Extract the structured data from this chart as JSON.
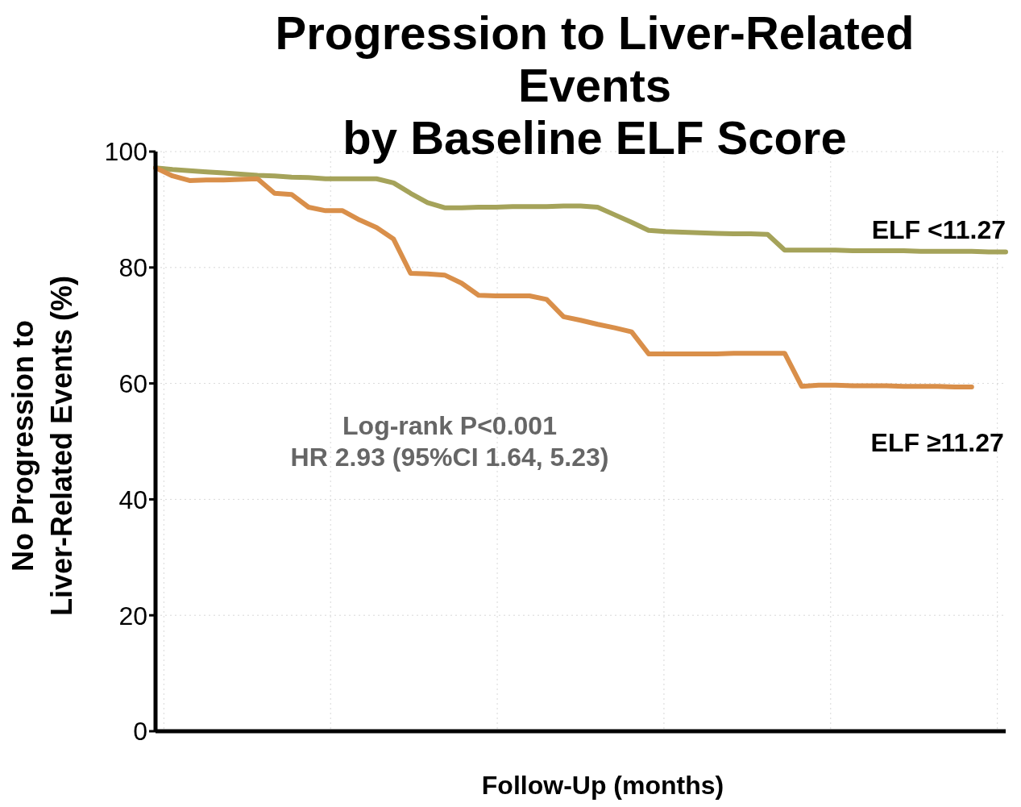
{
  "chart_data": {
    "type": "line",
    "title": "Progression to Liver-Related Events\nby Baseline ELF Score",
    "xlabel": "Follow-Up (months)",
    "ylabel": "No Progression to\nLiver-Related Events (%)",
    "categories": [
      null,
      null,
      null,
      null,
      null,
      null,
      null,
      null,
      null,
      null,
      null,
      null,
      null,
      null,
      null,
      null,
      null,
      null,
      null,
      null,
      null,
      null,
      null,
      null,
      null,
      null,
      null,
      null,
      null,
      null,
      null,
      null,
      null,
      null,
      null,
      null,
      null,
      null,
      null,
      null,
      null,
      null,
      null,
      null,
      null,
      null,
      null,
      null,
      null,
      null,
      null
    ],
    "series": [
      {
        "name": "ELF <11.27",
        "color": "#a5a35a",
        "values": [
          97.2,
          96.9,
          96.7,
          96.5,
          96.3,
          96.1,
          95.9,
          95.8,
          95.6,
          95.5,
          95.3,
          95.3,
          95.3,
          95.3,
          94.6,
          92.8,
          91.2,
          90.3,
          90.3,
          90.4,
          90.4,
          90.5,
          90.5,
          90.5,
          90.6,
          90.6,
          90.4,
          89.1,
          87.8,
          86.4,
          86.2,
          86.1,
          86.0,
          85.9,
          85.8,
          85.8,
          85.7,
          83.0,
          83.0,
          83.0,
          83.0,
          82.9,
          82.9,
          82.9,
          82.9,
          82.8,
          82.8,
          82.8,
          82.8,
          82.7,
          82.7
        ]
      },
      {
        "name": "ELF ≥11.27",
        "color": "#d98f4a",
        "values": [
          97.2,
          95.8,
          95.0,
          95.1,
          95.1,
          95.2,
          95.3,
          92.8,
          92.6,
          90.4,
          89.8,
          89.8,
          88.2,
          86.9,
          84.9,
          79.0,
          78.9,
          78.7,
          77.3,
          75.2,
          75.1,
          75.1,
          75.1,
          74.5,
          71.5,
          70.9,
          70.2,
          69.6,
          68.9,
          65.1,
          65.1,
          65.1,
          65.1,
          65.1,
          65.2,
          65.2,
          65.2,
          65.2,
          59.5,
          59.7,
          59.7,
          59.6,
          59.6,
          59.6,
          59.5,
          59.5,
          59.5,
          59.4,
          59.4,
          null,
          null
        ]
      }
    ],
    "ylim": [
      0,
      100
    ],
    "yticks": [
      0,
      20,
      40,
      60,
      80,
      100
    ],
    "grid": true,
    "marker": "none",
    "line_style": "solid",
    "annotations": [
      "Log-rank P<0.001",
      "HR 2.93 (95%CI 1.64, 5.23)"
    ]
  }
}
